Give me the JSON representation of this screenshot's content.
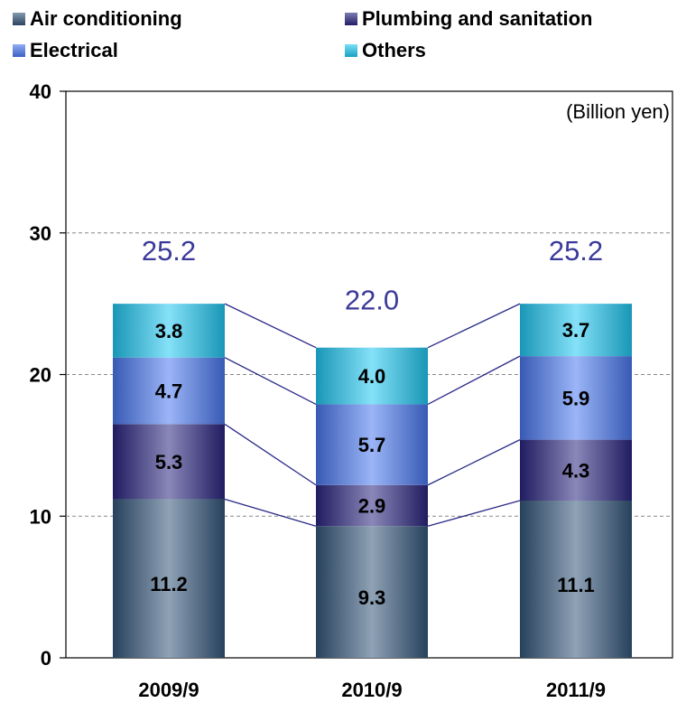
{
  "chart_data": {
    "type": "bar",
    "stacked": true,
    "categories": [
      "2009/9",
      "2010/9",
      "2011/9"
    ],
    "series": [
      {
        "name": "Air conditioning",
        "values": [
          11.2,
          9.3,
          11.1
        ],
        "color": "#34567a"
      },
      {
        "name": "Plumbing and sanitation",
        "values": [
          5.3,
          2.9,
          4.3
        ],
        "color": "#2a2580"
      },
      {
        "name": "Electrical",
        "values": [
          4.7,
          5.7,
          5.9
        ],
        "color": "#4a78f0"
      },
      {
        "name": "Others",
        "values": [
          3.8,
          4.0,
          3.7
        ],
        "color": "#21c8f2"
      }
    ],
    "segment_labels": [
      [
        "11.2",
        "9.3",
        "11.1"
      ],
      [
        "5.3",
        "2.9",
        "4.3"
      ],
      [
        "4.7",
        "5.7",
        "5.9"
      ],
      [
        "3.8",
        "4.0",
        "3.7"
      ]
    ],
    "totals": [
      25.2,
      22.0,
      25.2
    ],
    "total_labels": [
      "25.2",
      "22.0",
      "25.2"
    ],
    "unit_label": "(Billion yen)",
    "ylim": [
      0,
      40
    ],
    "yticks": [
      0,
      10,
      20,
      30,
      40
    ],
    "ytick_labels": [
      "0",
      "10",
      "20",
      "30",
      "40"
    ],
    "grid": "dashed horizontal",
    "legend_position": "top",
    "connector_color": "#2a2a88"
  }
}
